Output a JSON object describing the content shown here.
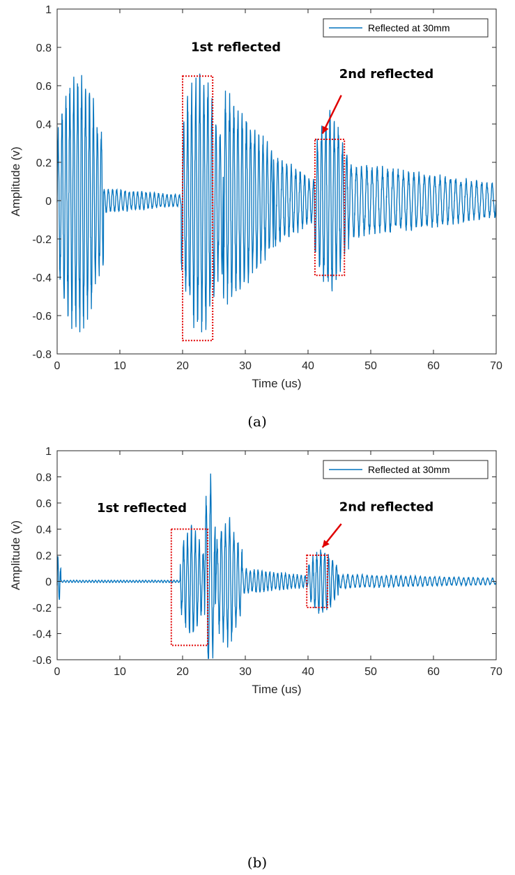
{
  "chart_data": [
    {
      "type": "line",
      "caption": "(a)",
      "xlabel": "Time (us)",
      "ylabel": "Amplitude (v)",
      "xlim": [
        0,
        70
      ],
      "ylim": [
        -0.8,
        1
      ],
      "xticks": [
        0,
        10,
        20,
        30,
        40,
        50,
        60,
        70
      ],
      "yticks": [
        -0.8,
        -0.6,
        -0.4,
        -0.2,
        0,
        0.2,
        0.4,
        0.6,
        0.8,
        1
      ],
      "ytick_labels": [
        "-0.8",
        "-0.6",
        "-0.4",
        "-0.2",
        "0",
        "0.2",
        "0.4",
        "0.6",
        "0.8",
        "1"
      ],
      "legend": {
        "entries": [
          "Reflected at 30mm"
        ],
        "position": "top-right"
      },
      "grid": false,
      "annotations": [
        {
          "text": "1st reflected",
          "x": 28.5,
          "y": 0.78
        },
        {
          "text": "2nd reflected",
          "x": 52.5,
          "y": 0.64
        }
      ],
      "highlight_boxes": [
        {
          "x": [
            20,
            24.8
          ],
          "y": [
            -0.73,
            0.65
          ]
        },
        {
          "x": [
            41.1,
            45.8
          ],
          "y": [
            -0.39,
            0.32
          ]
        }
      ],
      "arrow": {
        "from": [
          45.3,
          0.55
        ],
        "to": [
          42.3,
          0.35
        ]
      },
      "series": [
        {
          "name": "Reflected at 30mm",
          "color": "#0072BD",
          "segments": [
            {
              "t0": 0,
              "t1": 7.4,
              "amp": 0.62,
              "freq": 1.6,
              "shape": "burst"
            },
            {
              "t0": 7.4,
              "t1": 19.8,
              "amp": 0.06,
              "freq": 1.5,
              "shape": "decay"
            },
            {
              "t0": 19.8,
              "t1": 26.5,
              "amp": 0.62,
              "freq": 1.55,
              "shape": "burst"
            },
            {
              "t0": 26.5,
              "t1": 34.5,
              "amp": 0.52,
              "freq": 1.5,
              "shape": "decay"
            },
            {
              "t0": 34.5,
              "t1": 41,
              "amp": 0.22,
              "freq": 1.4,
              "shape": "decay"
            },
            {
              "t0": 41,
              "t1": 46.5,
              "amp": 0.42,
              "freq": 1.5,
              "shape": "burst"
            },
            {
              "t0": 46.5,
              "t1": 70,
              "amp": 0.18,
              "freq": 1.2,
              "shape": "decay"
            }
          ]
        }
      ]
    },
    {
      "type": "line",
      "caption": "(b)",
      "xlabel": "Time (us)",
      "ylabel": "Amplitude (v)",
      "xlim": [
        0,
        70
      ],
      "ylim": [
        -0.6,
        1
      ],
      "xticks": [
        0,
        10,
        20,
        30,
        40,
        50,
        60,
        70
      ],
      "yticks": [
        -0.6,
        -0.4,
        -0.2,
        0,
        0.2,
        0.4,
        0.6,
        0.8,
        1
      ],
      "ytick_labels": [
        "-0.6",
        "-0.4",
        "-0.2",
        "0",
        "0.2",
        "0.4",
        "0.6",
        "0.8",
        "1"
      ],
      "legend": {
        "entries": [
          "Reflected at 30mm"
        ],
        "position": "top-right"
      },
      "grid": false,
      "annotations": [
        {
          "text": "1st reflected",
          "x": 13.5,
          "y": 0.53
        },
        {
          "text": "2nd reflected",
          "x": 52.5,
          "y": 0.54
        }
      ],
      "highlight_boxes": [
        {
          "x": [
            18.2,
            24
          ],
          "y": [
            -0.49,
            0.4
          ]
        },
        {
          "x": [
            39.8,
            43.1
          ],
          "y": [
            -0.2,
            0.2
          ]
        }
      ],
      "arrow": {
        "from": [
          45.3,
          0.44
        ],
        "to": [
          42.3,
          0.26
        ]
      },
      "series": [
        {
          "name": "Reflected at 30mm",
          "color": "#0072BD",
          "segments": [
            {
              "t0": 0,
              "t1": 0.6,
              "amp": 0.2,
              "freq": 2.2,
              "shape": "decay"
            },
            {
              "t0": 0.6,
              "t1": 19.6,
              "amp": 0.008,
              "freq": 2.0,
              "shape": "flat"
            },
            {
              "t0": 19.6,
              "t1": 23.5,
              "amp": 0.38,
              "freq": 1.6,
              "shape": "burst"
            },
            {
              "t0": 23.5,
              "t1": 25.2,
              "amp": 0.75,
              "freq": 1.4,
              "shape": "burst"
            },
            {
              "t0": 25.2,
              "t1": 29.5,
              "amp": 0.45,
              "freq": 1.5,
              "shape": "burst"
            },
            {
              "t0": 29.5,
              "t1": 40,
              "amp": 0.09,
              "freq": 1.6,
              "shape": "decay"
            },
            {
              "t0": 40,
              "t1": 44.8,
              "amp": 0.22,
              "freq": 1.6,
              "shape": "burst"
            },
            {
              "t0": 44.8,
              "t1": 70,
              "amp": 0.05,
              "freq": 1.3,
              "shape": "decay"
            }
          ]
        }
      ]
    }
  ]
}
